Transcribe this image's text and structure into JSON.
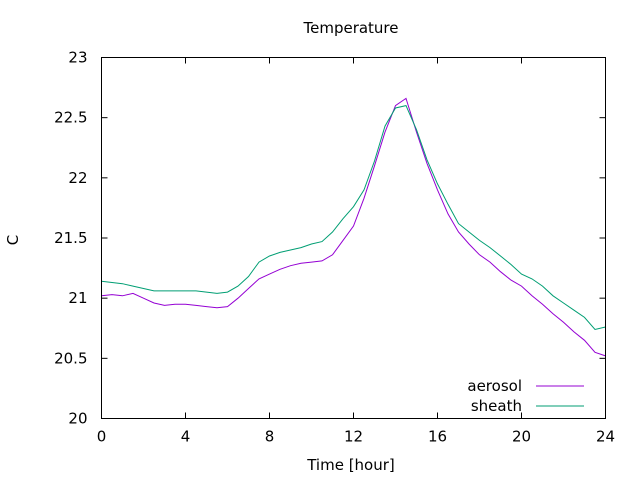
{
  "chart_data": {
    "type": "line",
    "title": "Temperature",
    "xlabel": "Time [hour]",
    "ylabel": "C",
    "xlim": [
      0,
      24
    ],
    "ylim": [
      20,
      23
    ],
    "xticks": [
      0,
      4,
      8,
      12,
      16,
      20,
      24
    ],
    "xtick_labels": [
      "0",
      "4",
      "8",
      "12",
      "16",
      "20",
      "24"
    ],
    "yticks": [
      20,
      20.5,
      21,
      21.5,
      22,
      22.5,
      23
    ],
    "ytick_labels": [
      "20",
      "20.5",
      "21",
      "21.5",
      "22",
      "22.5",
      "23"
    ],
    "grid": false,
    "legend_position": "bottom-right",
    "series": [
      {
        "name": "aerosol",
        "color": "#9400d3",
        "x": [
          0,
          0.5,
          1,
          1.5,
          2,
          2.5,
          3,
          3.5,
          4,
          4.5,
          5,
          5.5,
          6,
          6.5,
          7,
          7.5,
          8,
          8.5,
          9,
          9.5,
          10,
          10.5,
          11,
          11.5,
          12,
          12.5,
          13,
          13.5,
          14,
          14.5,
          15,
          15.5,
          16,
          16.5,
          17,
          17.5,
          18,
          18.5,
          19,
          19.5,
          20,
          20.5,
          21,
          21.5,
          22,
          22.5,
          23,
          23.5,
          24
        ],
        "y": [
          21.02,
          21.03,
          21.02,
          21.04,
          21.0,
          20.96,
          20.94,
          20.95,
          20.95,
          20.94,
          20.93,
          20.92,
          20.93,
          21.0,
          21.08,
          21.16,
          21.2,
          21.24,
          21.27,
          21.29,
          21.3,
          21.31,
          21.36,
          21.48,
          21.6,
          21.83,
          22.1,
          22.38,
          22.6,
          22.66,
          22.38,
          22.12,
          21.9,
          21.7,
          21.55,
          21.45,
          21.36,
          21.3,
          21.22,
          21.15,
          21.1,
          21.02,
          20.95,
          20.87,
          20.8,
          20.72,
          20.65,
          20.55,
          20.52
        ]
      },
      {
        "name": "sheath",
        "color": "#009e73",
        "x": [
          0,
          0.5,
          1,
          1.5,
          2,
          2.5,
          3,
          3.5,
          4,
          4.5,
          5,
          5.5,
          6,
          6.5,
          7,
          7.5,
          8,
          8.5,
          9,
          9.5,
          10,
          10.5,
          11,
          11.5,
          12,
          12.5,
          13,
          13.5,
          14,
          14.5,
          15,
          15.5,
          16,
          16.5,
          17,
          17.5,
          18,
          18.5,
          19,
          19.5,
          20,
          20.5,
          21,
          21.5,
          22,
          22.5,
          23,
          23.5,
          24
        ],
        "y": [
          21.14,
          21.13,
          21.12,
          21.1,
          21.08,
          21.06,
          21.06,
          21.06,
          21.06,
          21.06,
          21.05,
          21.04,
          21.05,
          21.1,
          21.18,
          21.3,
          21.35,
          21.38,
          21.4,
          21.42,
          21.45,
          21.47,
          21.55,
          21.66,
          21.76,
          21.9,
          22.14,
          22.43,
          22.58,
          22.6,
          22.4,
          22.15,
          21.95,
          21.78,
          21.62,
          21.55,
          21.48,
          21.42,
          21.35,
          21.28,
          21.2,
          21.16,
          21.1,
          21.02,
          20.96,
          20.9,
          20.84,
          20.74,
          20.76
        ]
      }
    ]
  }
}
